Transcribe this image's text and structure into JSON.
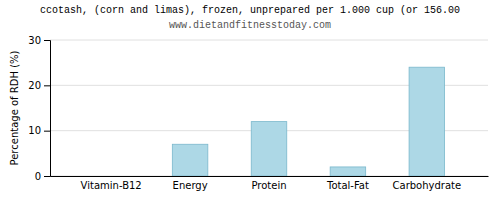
{
  "chart_data": {
    "type": "bar",
    "title": "ccotash, (corn and limas), frozen, unprepared per 1.000 cup (or 156.00",
    "subtitle": "www.dietandfitnesstoday.com",
    "categories": [
      "Vitamin-B12",
      "Energy",
      "Protein",
      "Total-Fat",
      "Carbohydrate"
    ],
    "values": [
      0,
      7,
      12,
      2,
      24
    ],
    "color": "#add8e6",
    "ylabel": "Percentage of RDH (%)",
    "ylim": [
      0,
      30
    ],
    "yticks": [
      0,
      10,
      20,
      30
    ],
    "grid": true
  }
}
